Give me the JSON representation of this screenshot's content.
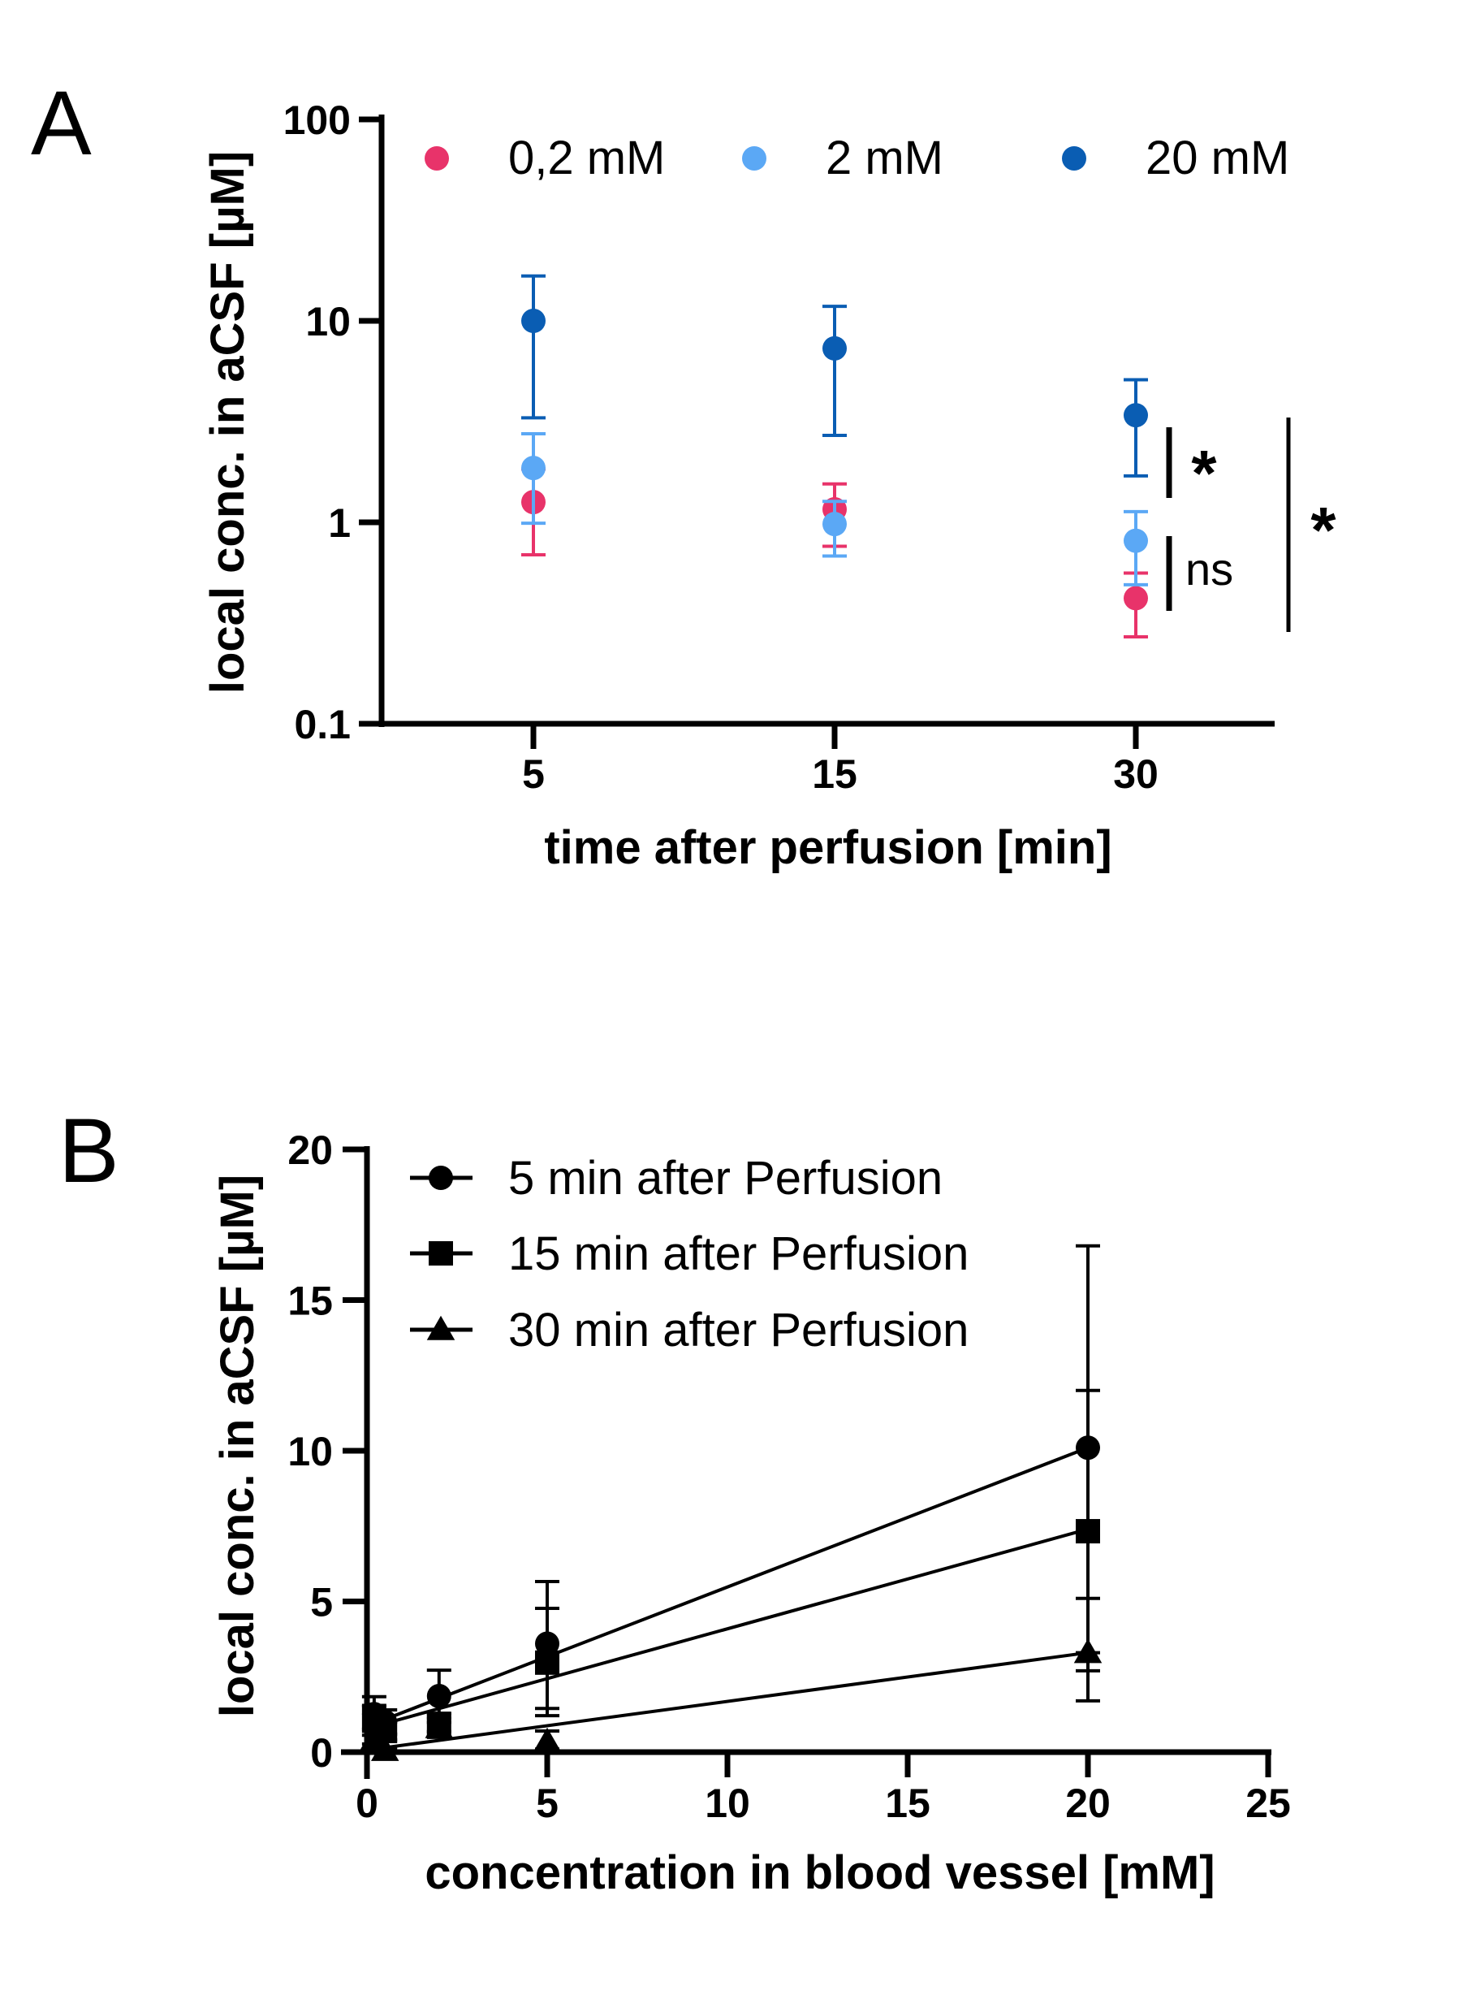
{
  "chart_data": [
    {
      "panel": "A",
      "type": "scatter",
      "title": "",
      "xlabel": "time after perfusion [min]",
      "ylabel": "local conc. in aCSF [µM]",
      "yscale": "log",
      "ylim": [
        0.1,
        100
      ],
      "yticks": [
        0.1,
        1,
        10,
        100
      ],
      "ytick_labels": [
        "0.1",
        "1",
        "10",
        "100"
      ],
      "categories": [
        "5",
        "15",
        "30"
      ],
      "legend_position": "top",
      "grid": false,
      "series": [
        {
          "name": "0,2 mM",
          "color": "#E8336A",
          "values": [
            1.26,
            1.16,
            0.42
          ],
          "err_upper": [
            1.84,
            1.55,
            0.56
          ],
          "err_lower": [
            0.69,
            0.76,
            0.27
          ]
        },
        {
          "name": "2 mM",
          "color": "#5BA8F5",
          "values": [
            1.86,
            0.98,
            0.81
          ],
          "err_upper": [
            2.75,
            1.27,
            1.13
          ],
          "err_lower": [
            0.99,
            0.68,
            0.49
          ]
        },
        {
          "name": "20 mM",
          "color": "#0A5DB3",
          "values": [
            10.0,
            7.3,
            3.4
          ],
          "err_upper": [
            16.7,
            11.8,
            5.1
          ],
          "err_lower": [
            3.3,
            2.7,
            1.7
          ]
        }
      ],
      "annotations": [
        {
          "type": "bracket",
          "at": "30",
          "between": [
            "20 mM",
            "2 mM"
          ],
          "label": "*"
        },
        {
          "type": "bracket",
          "at": "30",
          "between": [
            "2 mM",
            "0,2 mM"
          ],
          "label": "ns"
        },
        {
          "type": "bracket",
          "at": "30",
          "between": [
            "20 mM",
            "0,2 mM"
          ],
          "label": "*"
        }
      ]
    },
    {
      "panel": "B",
      "type": "line",
      "title": "",
      "xlabel": "concentration in blood vessel [mM]",
      "ylabel": "local conc. in aCSF [µM]",
      "xlim": [
        0,
        25
      ],
      "ylim": [
        0,
        20
      ],
      "xticks": [
        0,
        5,
        10,
        15,
        20,
        25
      ],
      "yticks": [
        0,
        5,
        10,
        15,
        20
      ],
      "legend_position": "top-left",
      "grid": false,
      "series": [
        {
          "name": "5 min after Perfusion",
          "marker": "circle",
          "x": [
            0.2,
            0.5,
            2,
            5,
            20
          ],
          "values": [
            1.26,
            1.0,
            1.86,
            3.6,
            10.1
          ],
          "err_upper": [
            1.84,
            1.4,
            2.72,
            5.66,
            16.8
          ],
          "err_lower": [
            0.69,
            0.6,
            0.99,
            1.21,
            3.3
          ],
          "fit": [
            0.95,
            10.1
          ]
        },
        {
          "name": "15 min after Perfusion",
          "marker": "square",
          "x": [
            0.2,
            0.5,
            2,
            5,
            20
          ],
          "values": [
            1.16,
            0.7,
            0.94,
            2.97,
            7.33
          ],
          "err_upper": [
            1.55,
            1.0,
            1.27,
            4.77,
            12.0
          ],
          "err_lower": [
            0.76,
            0.4,
            0.68,
            1.45,
            2.7
          ],
          "fit": [
            0.85,
            7.4
          ]
        },
        {
          "name": "30 min after Perfusion",
          "marker": "triangle",
          "x": [
            0.2,
            0.5,
            2,
            5,
            20
          ],
          "values": [
            0.42,
            0.05,
            0.81,
            0.35,
            3.3
          ],
          "err_upper": [
            0.56,
            0.1,
            1.13,
            0.7,
            5.1
          ],
          "err_lower": [
            0.27,
            0.0,
            0.49,
            0.1,
            1.7
          ],
          "fit": [
            0.1,
            3.3
          ]
        }
      ]
    }
  ],
  "panels": {
    "a_letter": "A",
    "b_letter": "B"
  }
}
